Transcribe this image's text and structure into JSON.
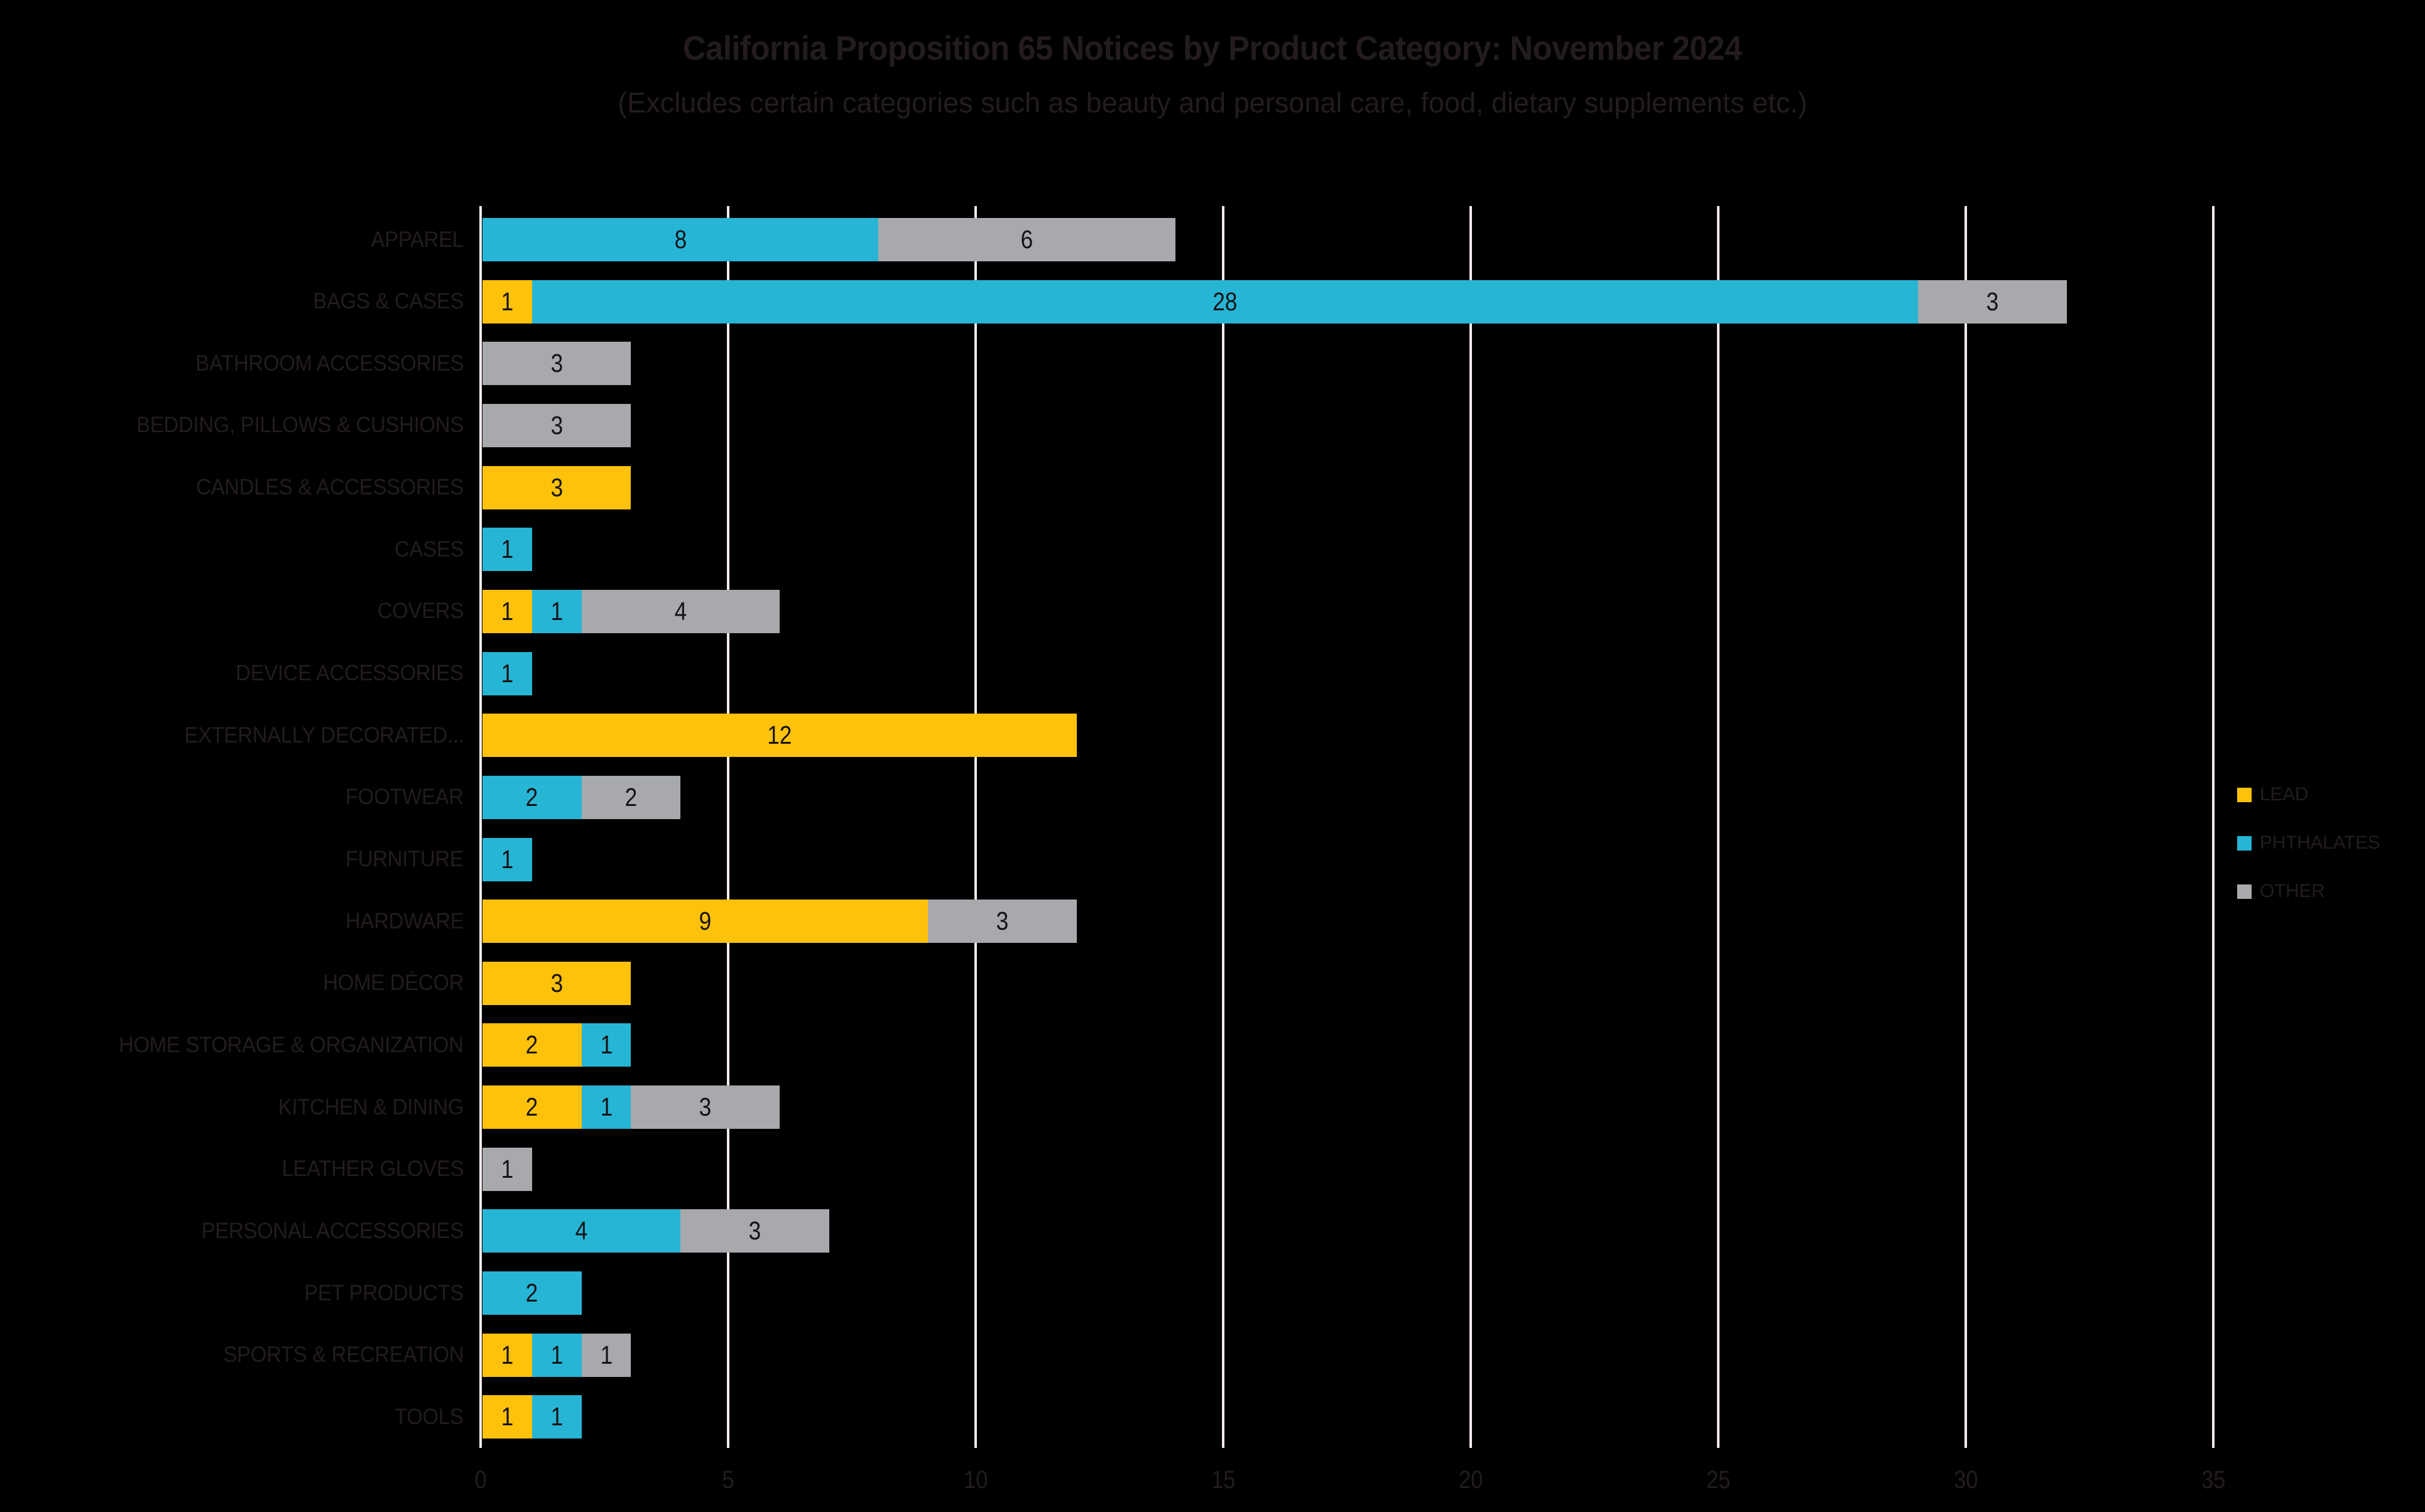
{
  "colors": {
    "background": "#000000",
    "text": "#231C1D",
    "gridline": "#F2E9EA",
    "bar_label": "#171213",
    "lead": "#FEC20A",
    "phthalates": "#27B5D6",
    "other": "#A7A9AC"
  },
  "chart_data": {
    "type": "bar",
    "orientation": "horizontal",
    "stacked": true,
    "title": "California Proposition 65 Notices by Product Category: November 2024",
    "subtitle": "(Excludes certain categories such as beauty and personal care, food, dietary supplements etc.)",
    "categories": [
      "APPAREL",
      "BAGS & CASES",
      "BATHROOM ACCESSORIES",
      "BEDDING, PILLOWS & CUSHIONS",
      "CANDLES & ACCESSORIES",
      "CASES",
      "COVERS",
      "DEVICE ACCESSORIES",
      "EXTERNALLY DECORATED...",
      "FOOTWEAR",
      "FURNITURE",
      "HARDWARE",
      "HOME DÉCOR",
      "HOME STORAGE & ORGANIZATION",
      "KITCHEN & DINING",
      "LEATHER GLOVES",
      "PERSONAL ACCESSORIES",
      "PET PRODUCTS",
      "SPORTS & RECREATION",
      "TOOLS"
    ],
    "series": [
      {
        "name": "LEAD",
        "color": "#FEC20A",
        "values": [
          0,
          1,
          0,
          0,
          3,
          0,
          1,
          0,
          12,
          0,
          0,
          9,
          3,
          2,
          2,
          0,
          0,
          0,
          1,
          1
        ]
      },
      {
        "name": "PHTHALATES",
        "color": "#27B5D6",
        "values": [
          8,
          28,
          0,
          0,
          0,
          1,
          1,
          1,
          0,
          2,
          1,
          0,
          0,
          1,
          1,
          0,
          4,
          2,
          1,
          1
        ]
      },
      {
        "name": "OTHER",
        "color": "#A7A9AC",
        "values": [
          6,
          3,
          3,
          3,
          0,
          0,
          4,
          0,
          0,
          2,
          0,
          3,
          0,
          0,
          3,
          1,
          3,
          0,
          1,
          0
        ]
      }
    ],
    "xlim": [
      0,
      35
    ],
    "x_ticks": [
      0,
      5,
      10,
      15,
      20,
      25,
      30,
      35
    ],
    "grid": true,
    "legend_position": "right",
    "data_labels": true
  }
}
